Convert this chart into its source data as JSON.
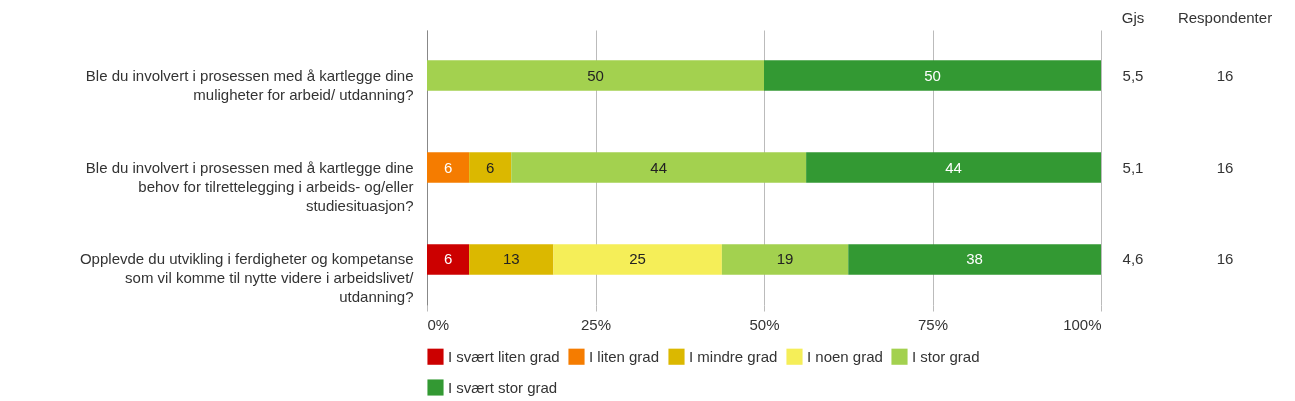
{
  "chart_data": {
    "type": "bar",
    "orientation": "horizontal",
    "stacked": true,
    "categories": [
      "Ble du involvert i prosessen med å kartlegge dine muligheter for arbeid/ utdanning?",
      "Ble du involvert i prosessen med å kartlegge dine behov for tilrettelegging i arbeids- og/eller studiesituasjon?",
      "Opplevde du utvikling i ferdigheter og kompetanse som vil komme til nytte videre i arbeidslivet/ utdanning?"
    ],
    "series": [
      {
        "name": "I svært liten grad",
        "color": "#cc0000",
        "values": [
          null,
          null,
          6.25
        ],
        "value_labels": [
          null,
          null,
          "6"
        ]
      },
      {
        "name": "I liten grad",
        "color": "#f57c00",
        "values": [
          null,
          6.25,
          null
        ],
        "value_labels": [
          null,
          "6",
          null
        ]
      },
      {
        "name": "I mindre grad",
        "color": "#dbb800",
        "values": [
          null,
          6.25,
          12.5
        ],
        "value_labels": [
          null,
          "6",
          "13"
        ]
      },
      {
        "name": "I noen grad",
        "color": "#f5ee58",
        "values": [
          null,
          null,
          25
        ],
        "value_labels": [
          null,
          null,
          "25"
        ]
      },
      {
        "name": "I stor grad",
        "color": "#a3d14f",
        "values": [
          50,
          43.75,
          18.75
        ],
        "value_labels": [
          "50",
          "44",
          "19"
        ]
      },
      {
        "name": "I svært stor grad",
        "color": "#339933",
        "values": [
          50,
          43.75,
          37.5
        ],
        "value_labels": [
          "50",
          "44",
          "38"
        ]
      }
    ],
    "xlim": [
      0,
      100
    ],
    "xticks": [
      {
        "value": 0,
        "label": "0%"
      },
      {
        "value": 25,
        "label": "25%"
      },
      {
        "value": 50,
        "label": "50%"
      },
      {
        "value": 75,
        "label": "75%"
      },
      {
        "value": 100,
        "label": "100%"
      }
    ],
    "grid": "x",
    "legend": "bottom",
    "annotations": [
      "Gjs",
      "Respondenter",
      "5,5",
      "16",
      "5,1",
      "16",
      "4,6",
      "16"
    ]
  }
}
